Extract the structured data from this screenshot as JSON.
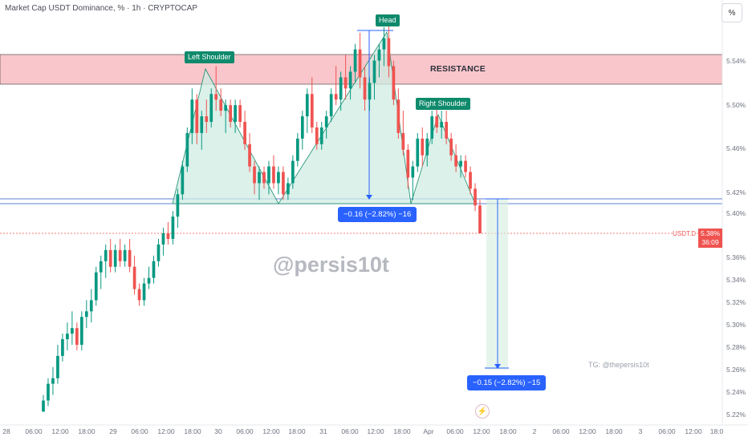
{
  "header": {
    "title": "Market Cap USDT Dominance, % · 1h · CRYPTOCAP",
    "scale_button": "%"
  },
  "annotations": {
    "left_shoulder": "Left Shoulder",
    "head": "Head",
    "right_shoulder": "Right Shoulder",
    "resistance": "RESISTANCE",
    "watermark": "@persis10t",
    "telegram": "TG: @thepersis10t",
    "measure_up": "−0.16 (−2.82%) −16",
    "measure_down": "−0.15 (−2.82%) −15"
  },
  "price_tag": {
    "symbol": "USDT.D",
    "price": "5.38%",
    "countdown": "36:09"
  },
  "colors": {
    "up": "#089981",
    "down": "#ef5350",
    "resistance_fill": "#f8c6cb",
    "pattern_fill": "#cfece3",
    "measure_blue": "#2962ff",
    "neckline": "#5f7fd6"
  },
  "chart_data": {
    "type": "candlestick",
    "symbol": "USDT.D",
    "unit": "%",
    "y_ticks": [
      "5.54%",
      "5.50%",
      "5.46%",
      "5.42%",
      "5.40%",
      "5.36%",
      "5.34%",
      "5.32%",
      "5.30%",
      "5.28%",
      "5.26%",
      "5.24%",
      "5.22%"
    ],
    "x_ticks": [
      "28",
      "06:00",
      "12:00",
      "18:00",
      "29",
      "06:00",
      "12:00",
      "18:00",
      "30",
      "06:00",
      "12:00",
      "18:00",
      "31",
      "06:00",
      "12:00",
      "18:00",
      "Apr",
      "06:00",
      "12:00",
      "18:00",
      "2",
      "06:00",
      "12:00",
      "18:00",
      "3",
      "06:00",
      "12:00",
      "18:0"
    ],
    "current_price": 5.38,
    "resistance_zone": [
      5.52,
      5.545
    ],
    "neckline": 5.41,
    "pattern": [
      "Left Shoulder",
      "Head",
      "Right Shoulder"
    ],
    "ohlc": [
      [
        5.22,
        5.235,
        5.22,
        5.23
      ],
      [
        5.23,
        5.25,
        5.225,
        5.245
      ],
      [
        5.245,
        5.26,
        5.235,
        5.25
      ],
      [
        5.25,
        5.28,
        5.245,
        5.27
      ],
      [
        5.27,
        5.29,
        5.265,
        5.285
      ],
      [
        5.285,
        5.3,
        5.275,
        5.29
      ],
      [
        5.29,
        5.31,
        5.28,
        5.295
      ],
      [
        5.295,
        5.3,
        5.275,
        5.28
      ],
      [
        5.28,
        5.31,
        5.275,
        5.305
      ],
      [
        5.305,
        5.32,
        5.295,
        5.31
      ],
      [
        5.31,
        5.33,
        5.3,
        5.32
      ],
      [
        5.32,
        5.35,
        5.315,
        5.345
      ],
      [
        5.345,
        5.36,
        5.33,
        5.355
      ],
      [
        5.355,
        5.37,
        5.34,
        5.365
      ],
      [
        5.365,
        5.375,
        5.345,
        5.35
      ],
      [
        5.35,
        5.37,
        5.345,
        5.365
      ],
      [
        5.365,
        5.375,
        5.35,
        5.355
      ],
      [
        5.355,
        5.37,
        5.35,
        5.365
      ],
      [
        5.365,
        5.375,
        5.345,
        5.35
      ],
      [
        5.35,
        5.36,
        5.325,
        5.33
      ],
      [
        5.33,
        5.335,
        5.315,
        5.32
      ],
      [
        5.32,
        5.34,
        5.315,
        5.335
      ],
      [
        5.335,
        5.35,
        5.33,
        5.34
      ],
      [
        5.34,
        5.36,
        5.335,
        5.355
      ],
      [
        5.355,
        5.375,
        5.35,
        5.37
      ],
      [
        5.37,
        5.385,
        5.36,
        5.38
      ],
      [
        5.38,
        5.39,
        5.37,
        5.375
      ],
      [
        5.375,
        5.4,
        5.37,
        5.395
      ],
      [
        5.395,
        5.42,
        5.385,
        5.415
      ],
      [
        5.415,
        5.445,
        5.41,
        5.44
      ],
      [
        5.44,
        5.475,
        5.435,
        5.47
      ],
      [
        5.47,
        5.51,
        5.46,
        5.5
      ],
      [
        5.5,
        5.505,
        5.46,
        5.47
      ],
      [
        5.47,
        5.49,
        5.455,
        5.485
      ],
      [
        5.485,
        5.5,
        5.47,
        5.48
      ],
      [
        5.48,
        5.51,
        5.475,
        5.505
      ],
      [
        5.505,
        5.53,
        5.49,
        5.5
      ],
      [
        5.5,
        5.51,
        5.485,
        5.49
      ],
      [
        5.49,
        5.5,
        5.47,
        5.495
      ],
      [
        5.495,
        5.5,
        5.475,
        5.48
      ],
      [
        5.48,
        5.5,
        5.47,
        5.495
      ],
      [
        5.495,
        5.5,
        5.475,
        5.48
      ],
      [
        5.48,
        5.49,
        5.455,
        5.46
      ],
      [
        5.46,
        5.47,
        5.435,
        5.44
      ],
      [
        5.44,
        5.445,
        5.415,
        5.425
      ],
      [
        5.425,
        5.44,
        5.41,
        5.435
      ],
      [
        5.435,
        5.44,
        5.42,
        5.425
      ],
      [
        5.425,
        5.445,
        5.415,
        5.44
      ],
      [
        5.44,
        5.45,
        5.42,
        5.425
      ],
      [
        5.425,
        5.44,
        5.415,
        5.435
      ],
      [
        5.435,
        5.44,
        5.41,
        5.415
      ],
      [
        5.415,
        5.43,
        5.41,
        5.425
      ],
      [
        5.425,
        5.45,
        5.42,
        5.445
      ],
      [
        5.445,
        5.47,
        5.44,
        5.465
      ],
      [
        5.465,
        5.49,
        5.455,
        5.485
      ],
      [
        5.485,
        5.51,
        5.47,
        5.505
      ],
      [
        5.505,
        5.52,
        5.47,
        5.475
      ],
      [
        5.475,
        5.48,
        5.455,
        5.46
      ],
      [
        5.46,
        5.48,
        5.455,
        5.475
      ],
      [
        5.475,
        5.49,
        5.465,
        5.485
      ],
      [
        5.485,
        5.51,
        5.48,
        5.505
      ],
      [
        5.505,
        5.53,
        5.495,
        5.5
      ],
      [
        5.5,
        5.525,
        5.49,
        5.52
      ],
      [
        5.52,
        5.54,
        5.5,
        5.51
      ],
      [
        5.51,
        5.53,
        5.5,
        5.525
      ],
      [
        5.525,
        5.55,
        5.515,
        5.545
      ],
      [
        5.545,
        5.56,
        5.51,
        5.52
      ],
      [
        5.52,
        5.53,
        5.49,
        5.5
      ],
      [
        5.5,
        5.52,
        5.49,
        5.515
      ],
      [
        5.515,
        5.54,
        5.5,
        5.535
      ],
      [
        5.535,
        5.55,
        5.52,
        5.545
      ],
      [
        5.545,
        5.565,
        5.53,
        5.555
      ],
      [
        5.555,
        5.57,
        5.52,
        5.53
      ],
      [
        5.53,
        5.535,
        5.495,
        5.5
      ],
      [
        5.5,
        5.51,
        5.465,
        5.47
      ],
      [
        5.47,
        5.49,
        5.45,
        5.455
      ],
      [
        5.455,
        5.46,
        5.42,
        5.43
      ],
      [
        5.43,
        5.445,
        5.41,
        5.44
      ],
      [
        5.44,
        5.47,
        5.435,
        5.465
      ],
      [
        5.465,
        5.475,
        5.44,
        5.45
      ],
      [
        5.45,
        5.47,
        5.44,
        5.465
      ],
      [
        5.465,
        5.49,
        5.46,
        5.485
      ],
      [
        5.485,
        5.495,
        5.47,
        5.475
      ],
      [
        5.475,
        5.49,
        5.465,
        5.48
      ],
      [
        5.48,
        5.49,
        5.46,
        5.465
      ],
      [
        5.465,
        5.47,
        5.445,
        5.45
      ],
      [
        5.45,
        5.46,
        5.435,
        5.44
      ],
      [
        5.44,
        5.45,
        5.43,
        5.445
      ],
      [
        5.445,
        5.45,
        5.43,
        5.435
      ],
      [
        5.435,
        5.44,
        5.415,
        5.42
      ],
      [
        5.42,
        5.425,
        5.4,
        5.405
      ],
      [
        5.405,
        5.41,
        5.38,
        5.38
      ]
    ]
  }
}
